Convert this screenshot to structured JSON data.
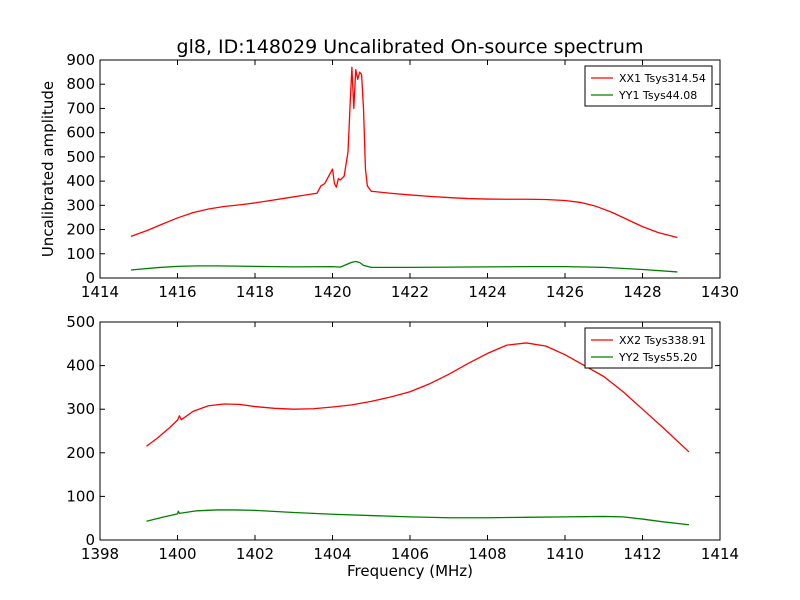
{
  "figure": {
    "title": "gl8, ID:148029 Uncalibrated On-source spectrum"
  },
  "chart_data": [
    {
      "type": "line",
      "title": "gl8, ID:148029 Uncalibrated On-source spectrum",
      "xlabel": "",
      "ylabel": "Uncalibrated amplitude",
      "xlim": [
        1414,
        1430
      ],
      "ylim": [
        0,
        900
      ],
      "xticks": [
        1414,
        1416,
        1418,
        1420,
        1422,
        1424,
        1426,
        1428,
        1430
      ],
      "yticks": [
        0,
        100,
        200,
        300,
        400,
        500,
        600,
        700,
        800,
        900
      ],
      "grid": false,
      "legend_position": "top-right",
      "series": [
        {
          "name": "XX1 Tsys314.54",
          "color": "#ff0000",
          "x": [
            1414.8,
            1415.2,
            1415.6,
            1416.0,
            1416.4,
            1416.8,
            1417.2,
            1417.6,
            1418.0,
            1418.4,
            1418.8,
            1419.2,
            1419.6,
            1419.7,
            1419.8,
            1419.9,
            1420.0,
            1420.05,
            1420.1,
            1420.15,
            1420.2,
            1420.3,
            1420.4,
            1420.45,
            1420.5,
            1420.55,
            1420.6,
            1420.65,
            1420.7,
            1420.75,
            1420.8,
            1420.85,
            1420.9,
            1421.0,
            1421.5,
            1422.0,
            1422.5,
            1423.0,
            1423.5,
            1424.0,
            1424.5,
            1425.0,
            1425.5,
            1426.0,
            1426.4,
            1426.8,
            1427.2,
            1427.6,
            1428.0,
            1428.4,
            1428.9
          ],
          "y": [
            172,
            195,
            222,
            248,
            270,
            285,
            295,
            302,
            310,
            320,
            330,
            340,
            350,
            380,
            390,
            420,
            450,
            390,
            375,
            410,
            405,
            420,
            520,
            700,
            870,
            700,
            860,
            820,
            850,
            840,
            700,
            450,
            380,
            358,
            350,
            343,
            337,
            332,
            328,
            326,
            325,
            325,
            324,
            320,
            312,
            296,
            272,
            242,
            212,
            188,
            167
          ]
        },
        {
          "name": "YY1 Tsys44.08",
          "color": "#008000",
          "x": [
            1414.8,
            1415.5,
            1416.0,
            1416.5,
            1417.0,
            1418.0,
            1419.0,
            1420.0,
            1420.2,
            1420.5,
            1420.6,
            1420.7,
            1420.8,
            1421.0,
            1422.0,
            1423.0,
            1424.0,
            1425.0,
            1426.0,
            1427.0,
            1428.0,
            1428.9
          ],
          "y": [
            33,
            43,
            48,
            50,
            50,
            48,
            46,
            47,
            45,
            65,
            68,
            64,
            52,
            44,
            44,
            45,
            46,
            47,
            47,
            44,
            35,
            25
          ]
        }
      ]
    },
    {
      "type": "line",
      "title": "",
      "xlabel": "Frequency (MHz)",
      "ylabel": "",
      "xlim": [
        1398,
        1414
      ],
      "ylim": [
        0,
        500
      ],
      "xticks": [
        1398,
        1400,
        1402,
        1404,
        1406,
        1408,
        1410,
        1412,
        1414
      ],
      "yticks": [
        0,
        100,
        200,
        300,
        400,
        500
      ],
      "grid": false,
      "legend_position": "top-right",
      "series": [
        {
          "name": "XX2 Tsys338.91",
          "color": "#ff0000",
          "x": [
            1399.2,
            1399.5,
            1399.8,
            1400.0,
            1400.05,
            1400.1,
            1400.4,
            1400.8,
            1401.2,
            1401.6,
            1402.0,
            1402.5,
            1403.0,
            1403.5,
            1404.0,
            1404.5,
            1405.0,
            1405.5,
            1406.0,
            1406.5,
            1407.0,
            1407.5,
            1408.0,
            1408.5,
            1409.0,
            1409.5,
            1410.0,
            1410.5,
            1411.0,
            1411.5,
            1412.0,
            1412.5,
            1413.2
          ],
          "y": [
            215,
            235,
            258,
            275,
            285,
            276,
            295,
            308,
            312,
            311,
            306,
            302,
            300,
            301,
            305,
            310,
            318,
            328,
            340,
            358,
            380,
            405,
            428,
            447,
            452,
            445,
            425,
            400,
            375,
            340,
            300,
            260,
            202
          ]
        },
        {
          "name": "YY2 Tsys55.20",
          "color": "#008000",
          "x": [
            1399.2,
            1399.6,
            1400.0,
            1400.02,
            1400.05,
            1400.5,
            1401.0,
            1401.5,
            1402.0,
            1403.0,
            1404.0,
            1405.0,
            1406.0,
            1407.0,
            1408.0,
            1409.0,
            1410.0,
            1411.0,
            1411.5,
            1412.0,
            1412.5,
            1413.2
          ],
          "y": [
            43,
            52,
            60,
            66,
            61,
            67,
            69,
            69,
            68,
            63,
            59,
            56,
            53,
            51,
            51,
            52,
            53,
            54,
            53,
            48,
            42,
            35
          ]
        }
      ]
    }
  ]
}
